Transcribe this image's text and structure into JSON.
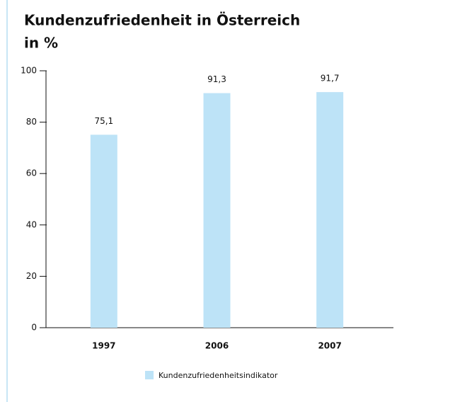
{
  "chart_data": {
    "type": "bar",
    "title": "Kundenzufriedenheit in Österreich",
    "subtitle": "in %",
    "categories": [
      "1997",
      "2006",
      "2007"
    ],
    "series": [
      {
        "name": "Kundenzufriedenheitsindikator",
        "color": "#bde3f7",
        "values": [
          75.1,
          91.3,
          91.7
        ],
        "value_labels": [
          "75,1",
          "91,3",
          "91,7"
        ]
      }
    ],
    "ylim": [
      0,
      100
    ],
    "yticks": [
      0,
      20,
      40,
      60,
      80,
      100
    ],
    "grid": false,
    "legend": "bottom"
  }
}
